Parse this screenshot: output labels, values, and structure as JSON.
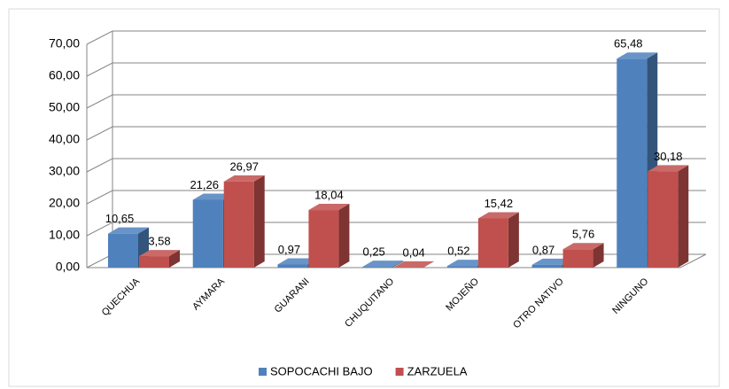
{
  "chart_data": {
    "type": "bar3d",
    "categories": [
      "QUECHUA",
      "AYMARA",
      "GUARANI",
      "CHUQUITANO",
      "MOJEÑO",
      "OTRO NATIVO",
      "NINGUNO"
    ],
    "series": [
      {
        "name": "SOPOCACHI BAJO",
        "color": "#4f81bd",
        "values": [
          10.65,
          21.26,
          0.97,
          0.25,
          0.52,
          0.87,
          65.48
        ],
        "value_labels": [
          "10,65",
          "21,26",
          "0,97",
          "0,25",
          "0,52",
          "0,87",
          "65,48"
        ]
      },
      {
        "name": "ZARZUELA",
        "color": "#c0504d",
        "values": [
          3.58,
          26.97,
          18.04,
          0.04,
          15.42,
          5.76,
          30.18
        ],
        "value_labels": [
          "3,58",
          "26,97",
          "18,04",
          "0,04",
          "15,42",
          "5,76",
          "30,18"
        ]
      }
    ],
    "ylim": [
      0,
      70
    ],
    "yticks": [
      {
        "value": 0,
        "label": "0,00"
      },
      {
        "value": 10,
        "label": "10,00"
      },
      {
        "value": 20,
        "label": "20,00"
      },
      {
        "value": 30,
        "label": "30,00"
      },
      {
        "value": 40,
        "label": "40,00"
      },
      {
        "value": 50,
        "label": "50,00"
      },
      {
        "value": 60,
        "label": "60,00"
      },
      {
        "value": 70,
        "label": "70,00"
      }
    ],
    "grid": true,
    "legend": "bottom"
  }
}
